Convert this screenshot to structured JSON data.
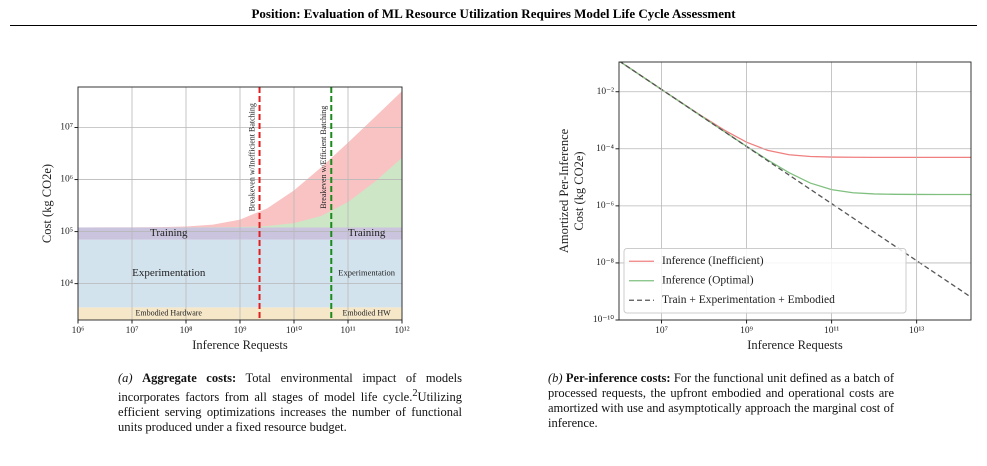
{
  "header": {
    "title": "Position: Evaluation of ML Resource Utilization Requires Model Life Cycle Assessment"
  },
  "chart_data": [
    {
      "type": "area",
      "xlabel": "Inference Requests",
      "ylabel": "Cost (kg CO2e)",
      "log_x": true,
      "log_y": true,
      "grid": true,
      "xlim": [
        1000000,
        1000000000000
      ],
      "ylim": [
        2000,
        60000000
      ],
      "xticks": [
        {
          "value": 1000000,
          "label": "10⁶"
        },
        {
          "value": 10000000,
          "label": "10⁷"
        },
        {
          "value": 100000000,
          "label": "10⁸"
        },
        {
          "value": 1000000000,
          "label": "10⁹"
        },
        {
          "value": 10000000000,
          "label": "10¹⁰"
        },
        {
          "value": 100000000000,
          "label": "10¹¹"
        },
        {
          "value": 1000000000000,
          "label": "10¹²"
        }
      ],
      "yticks": [
        {
          "value": 10000,
          "label": "10⁴"
        },
        {
          "value": 100000,
          "label": "10⁵"
        },
        {
          "value": 1000000,
          "label": "10⁶"
        },
        {
          "value": 10000000,
          "label": "10⁷"
        }
      ],
      "bands": [
        {
          "labels": [
            "Embodied Hardware",
            "Embodied HW"
          ],
          "value": 3500,
          "color": "#f6e7c9"
        },
        {
          "labels": [
            "Experimentation",
            "Experimentation"
          ],
          "value": 66500,
          "color": "#d3e3ee"
        },
        {
          "labels": [
            "Training",
            "Training"
          ],
          "value": 50000,
          "color": "#cbc4df"
        }
      ],
      "x": [
        1000000,
        3162278,
        10000000,
        31622777,
        100000000,
        316227766,
        1000000000,
        3162277660,
        10000000000,
        31622776602,
        100000000000,
        316227766017,
        1000000000000
      ],
      "series": [
        {
          "color": "#f9c3c3",
          "values": [
            120050,
            120158,
            120500,
            121581,
            125000,
            135811,
            170000,
            278114,
            620000,
            1701139,
            5120000,
            15931139,
            50120000
          ]
        },
        {
          "color": "#cde6c6",
          "values": [
            120003,
            120008,
            120025,
            120079,
            120250,
            120791,
            122500,
            127906,
            145000,
            199057,
            370000,
            910569,
            2620000
          ]
        }
      ],
      "vlines": [
        {
          "x": 2300000000,
          "color": "#e02020",
          "label": "Breakeven w/Inefficient Batching"
        },
        {
          "x": 49000000000,
          "color": "#1a8a1a",
          "label": "Breakeven w/Efficient Batching"
        }
      ]
    },
    {
      "type": "line",
      "xlabel": "Inference Requests",
      "ylabel": [
        "Amortized Per-Inference",
        "Cost (kg CO2e)"
      ],
      "log_x": true,
      "log_y": true,
      "grid": true,
      "legend": "lower-left",
      "xlim": [
        1000000,
        190000000000000
      ],
      "ylim": [
        1e-10,
        0.11
      ],
      "xticks": [
        {
          "value": 10000000,
          "label": "10⁷"
        },
        {
          "value": 1000000000,
          "label": "10⁹"
        },
        {
          "value": 100000000000,
          "label": "10¹¹"
        },
        {
          "value": 10000000000000,
          "label": "10¹³"
        }
      ],
      "yticks": [
        {
          "value": 1e-10,
          "label": "10⁻¹⁰"
        },
        {
          "value": 1e-08,
          "label": "10⁻⁸"
        },
        {
          "value": 1e-06,
          "label": "10⁻⁶"
        },
        {
          "value": 0.0001,
          "label": "10⁻⁴"
        },
        {
          "value": 0.01,
          "label": "10⁻²"
        }
      ],
      "x": [
        1000000,
        3162278,
        10000000,
        31622777,
        100000000,
        316227766,
        1000000000,
        3162277660,
        10000000000,
        31622776602,
        100000000000,
        316227766017,
        1000000000000,
        3162277660168,
        10000000000000,
        31622776601684,
        100000000000000,
        190000000000000
      ],
      "series": [
        {
          "name": "Inference (Inefficient)",
          "color": "#f07f7f",
          "linestyle": "solid",
          "values": [
            0.12005,
            0.038,
            0.01205,
            0.003845,
            0.00125,
            0.0004295,
            0.00017,
            8.795e-05,
            6.2e-05,
            5.3795e-05,
            5.12e-05,
            5.038e-05,
            5.012e-05,
            5.004e-05,
            5.001e-05,
            5e-05,
            5e-05,
            5e-05
          ]
        },
        {
          "name": "Inference (Optimal)",
          "color": "#7fc07f",
          "linestyle": "solid",
          "values": [
            0.1200025,
            0.03795,
            0.0120025,
            0.0037975,
            0.0012025,
            0.000382,
            0.0001225,
            4.045e-05,
            1.45e-05,
            6.295e-06,
            3.7e-06,
            2.88e-06,
            2.62e-06,
            2.538e-06,
            2.512e-06,
            2.504e-06,
            2.501e-06,
            2.5e-06
          ]
        },
        {
          "name": "Train + Experimentation + Embodied",
          "color": "#555555",
          "linestyle": "dashed",
          "values": [
            0.12,
            0.03795,
            0.012,
            0.003795,
            0.0012,
            0.0003795,
            0.00012,
            3.795e-05,
            1.2e-05,
            3.795e-06,
            1.2e-06,
            3.795e-07,
            1.2e-07,
            3.795e-08,
            1.2e-08,
            3.795e-09,
            1.2e-09,
            6.3e-10
          ]
        }
      ]
    }
  ],
  "captions": [
    {
      "tag": "(a)",
      "heading": "Aggregate costs:",
      "text": "Total environmental impact of models incorporates factors from all stages of model life cycle.",
      "footnote": "2",
      "text2": "Utilizing efficient serving optimizations increases the number of functional units produced under a fixed resource budget."
    },
    {
      "tag": "(b)",
      "heading": "Per-inference costs:",
      "text": "For the functional unit defined as a batch of processed requests, the upfront embodied and operational costs are amortized with use and asymptotically approach the marginal cost of inference."
    }
  ]
}
